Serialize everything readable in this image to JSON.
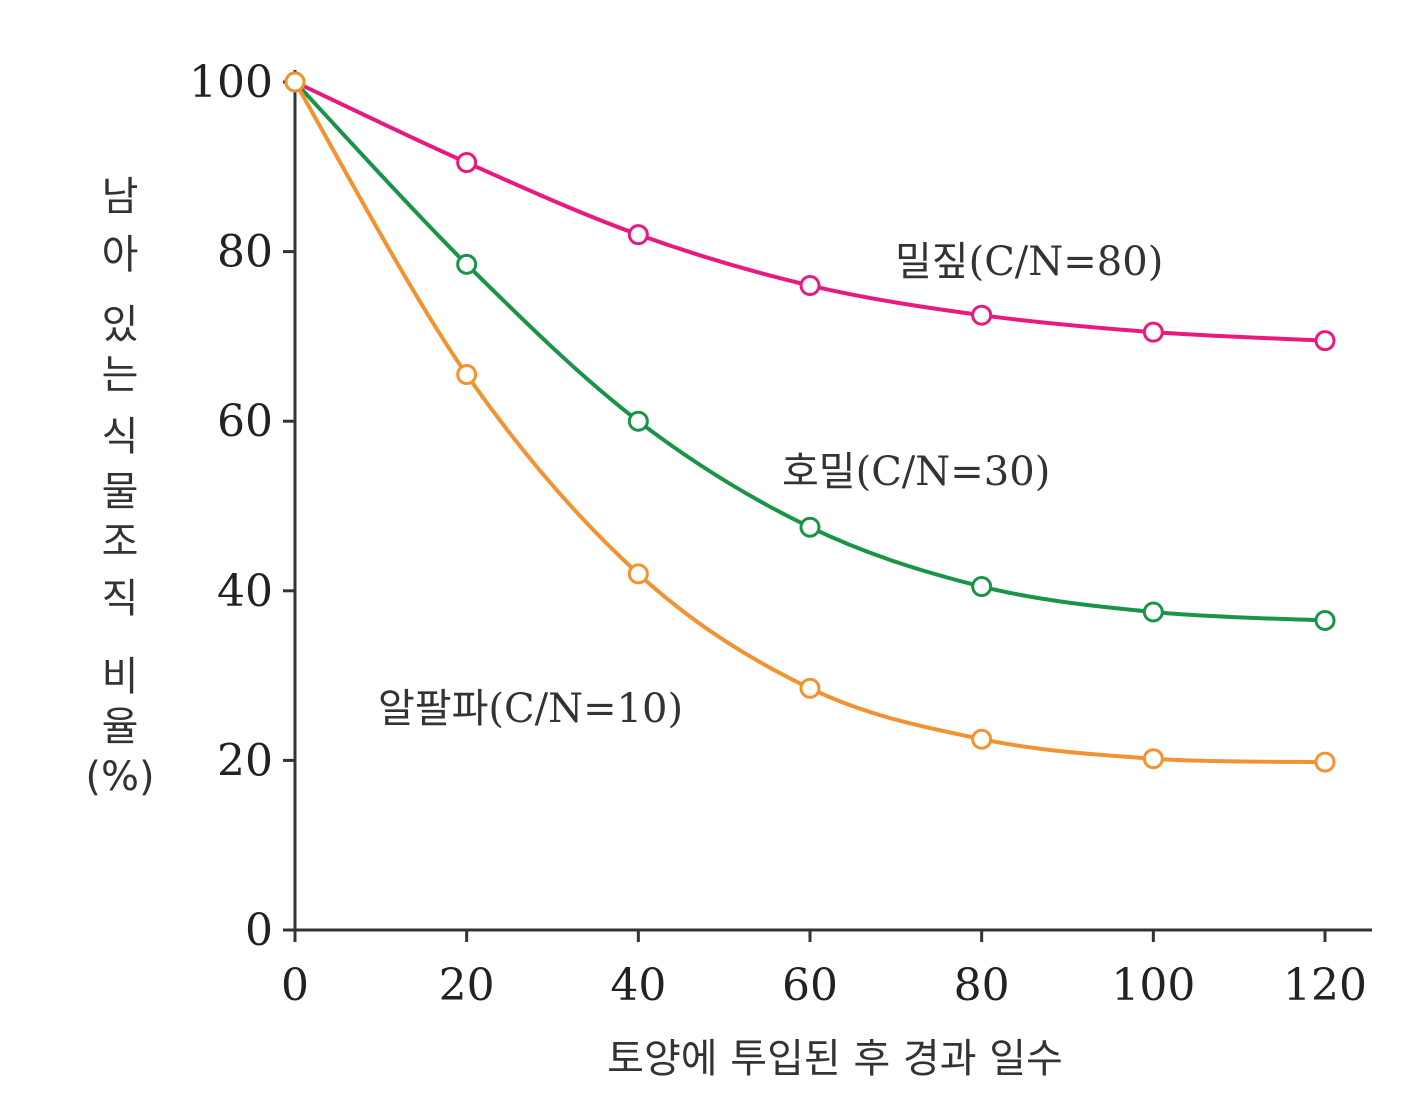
{
  "chart_data": {
    "type": "line",
    "title": "",
    "xlabel": "토양에 투입된 후 경과 일수",
    "ylabel_lines": [
      "남",
      "아",
      "있",
      "는",
      "식",
      "물",
      "조",
      "직",
      "비",
      "율",
      "(%)"
    ],
    "xlim": [
      0,
      120
    ],
    "ylim": [
      0,
      100
    ],
    "x_ticks": [
      0,
      20,
      40,
      60,
      80,
      100,
      120
    ],
    "y_ticks": [
      0,
      20,
      40,
      60,
      80,
      100
    ],
    "grid": false,
    "x": [
      0,
      20,
      40,
      60,
      80,
      100,
      120
    ],
    "series": [
      {
        "name": "밀짚(C/N=80)",
        "color": "#e8197f",
        "values": [
          100,
          90.5,
          82,
          76,
          72.5,
          70.5,
          69.5
        ]
      },
      {
        "name": "호밀(C/N=30)",
        "color": "#1a9447",
        "values": [
          100,
          78.5,
          60,
          47.5,
          40.5,
          37.5,
          36.5
        ]
      },
      {
        "name": "알팔파(C/N=10)",
        "color": "#f39230",
        "values": [
          100,
          65.5,
          42,
          28.5,
          22.5,
          20.2,
          19.8
        ]
      }
    ]
  }
}
